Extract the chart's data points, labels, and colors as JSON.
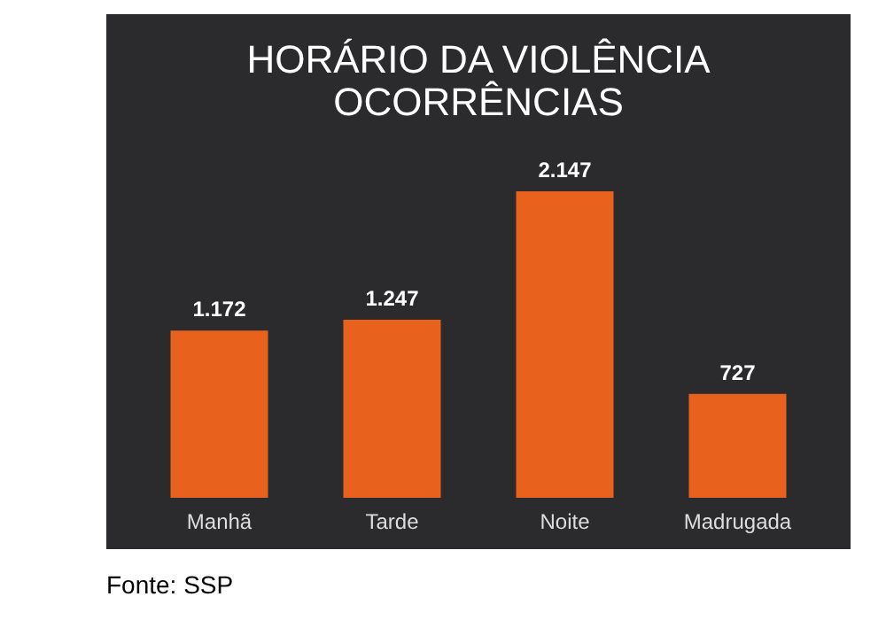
{
  "chart_data": {
    "type": "bar",
    "title": "HORÁRIO DA VIOLÊNCIA\nOCORRÊNCIAS",
    "categories": [
      "Manhã",
      "Tarde",
      "Noite",
      "Madrugada"
    ],
    "values": [
      1172,
      1247,
      2147,
      727
    ],
    "value_labels": [
      "1.172",
      "1.247",
      "2.147",
      "727"
    ],
    "color": "#e8621e",
    "annotations": [
      "Fonte: SSP"
    ]
  }
}
